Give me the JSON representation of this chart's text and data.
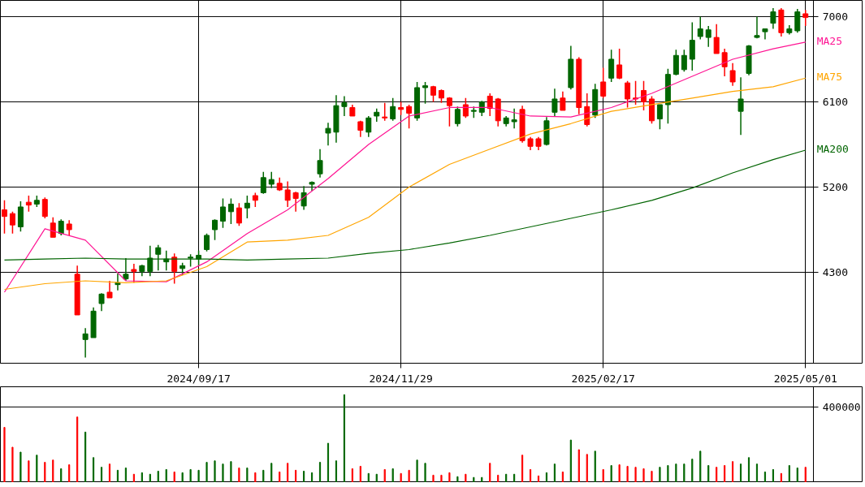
{
  "chart_data": [
    {
      "type": "candlestick",
      "categories": [
        null,
        null,
        null,
        null,
        null,
        null,
        null,
        null,
        null,
        null,
        null,
        null,
        null,
        null,
        null,
        null,
        null,
        null,
        null,
        null,
        null,
        null,
        null,
        null,
        "2024/09/17",
        null,
        null,
        null,
        null,
        null,
        null,
        null,
        null,
        null,
        null,
        null,
        null,
        null,
        null,
        null,
        null,
        null,
        null,
        null,
        null,
        null,
        null,
        null,
        null,
        "2024/11/29",
        null,
        null,
        null,
        null,
        null,
        null,
        null,
        null,
        null,
        null,
        null,
        null,
        null,
        null,
        null,
        null,
        null,
        null,
        null,
        null,
        null,
        null,
        null,
        null,
        "2025/02/17",
        null,
        null,
        null,
        null,
        null,
        null,
        null,
        null,
        null,
        null,
        null,
        null,
        null,
        null,
        null,
        null,
        null,
        null,
        null,
        null,
        null,
        null,
        null,
        null,
        "2025/05/01"
      ],
      "colors": [
        "#ff0000",
        "#ff0000",
        "#006600",
        "#ff0000",
        "#006600",
        "#ff0000",
        "#ff0000",
        "#006600",
        "#ff0000",
        "#ff0000",
        "#006600",
        "#006600",
        "#006600",
        "#ff0000",
        "#006600",
        "#006600",
        "#ff0000",
        "#006600",
        "#006600",
        "#006600",
        "#006600",
        "#ff0000",
        "#006600",
        "#006600",
        "#006600",
        "#006600",
        "#006600",
        "#006600",
        "#006600",
        "#ff0000",
        "#006600",
        "#ff0000",
        "#006600",
        "#006600",
        "#ff0000",
        "#ff0000",
        "#ff0000",
        "#006600",
        "#006600",
        "#006600",
        "#006600",
        "#006600",
        "#006600",
        "#ff0000",
        "#ff0000",
        "#006600",
        "#006600",
        "#ff0000",
        "#006600",
        "#ff0000",
        "#ff0000",
        "#006600",
        "#006600",
        "#ff0000",
        "#ff0000",
        "#ff0000",
        "#006600",
        "#ff0000",
        "#006600",
        "#006600",
        "#ff0000",
        "#ff0000",
        "#006600",
        "#006600",
        "#ff0000",
        "#ff0000",
        "#ff0000",
        "#006600",
        "#006600",
        "#ff0000",
        "#006600",
        "#ff0000",
        "#ff0000",
        "#006600",
        "#ff0000",
        "#006600",
        "#ff0000",
        "#ff0000",
        "#ff0000",
        "#ff0000",
        "#ff0000",
        "#006600",
        "#006600",
        "#006600",
        "#006600",
        "#006600",
        "#006600",
        "#006600",
        "#ff0000",
        "#ff0000",
        "#ff0000",
        "#006600",
        "#006600",
        "#006600",
        "#006600",
        "#006600",
        "#ff0000",
        "#006600",
        "#006600",
        "#ff0000"
      ],
      "ohlc": [
        [
          4960,
          5060,
          4710,
          4890
        ],
        [
          4920,
          4940,
          4710,
          4800
        ],
        [
          4780,
          5050,
          4730,
          4990
        ],
        [
          5040,
          5110,
          4940,
          5010
        ],
        [
          5020,
          5110,
          4990,
          5060
        ],
        [
          5070,
          5090,
          4870,
          4890
        ],
        [
          4820,
          4880,
          4670,
          4670
        ],
        [
          4710,
          4860,
          4690,
          4840
        ],
        [
          4810,
          4850,
          4690,
          4750
        ],
        [
          4280,
          4370,
          3850,
          3850
        ],
        [
          3590,
          3710,
          3400,
          3650
        ],
        [
          3610,
          3930,
          3610,
          3890
        ],
        [
          3970,
          4080,
          3890,
          4070
        ],
        [
          4090,
          4210,
          4030,
          4030
        ],
        [
          4170,
          4290,
          4110,
          4190
        ],
        [
          4230,
          4450,
          4210,
          4280
        ],
        [
          4330,
          4390,
          4190,
          4310
        ],
        [
          4310,
          4380,
          4260,
          4370
        ],
        [
          4310,
          4580,
          4260,
          4450
        ],
        [
          4490,
          4590,
          4320,
          4560
        ],
        [
          4410,
          4530,
          4320,
          4440
        ],
        [
          4460,
          4500,
          4180,
          4310
        ],
        [
          4340,
          4400,
          4270,
          4370
        ],
        [
          4450,
          4490,
          4360,
          4460
        ],
        [
          4440,
          4530,
          4370,
          4480
        ],
        [
          4540,
          4710,
          4520,
          4690
        ],
        [
          4750,
          4860,
          4640,
          4850
        ],
        [
          4840,
          5080,
          4770,
          4990
        ],
        [
          4940,
          5080,
          4810,
          5020
        ],
        [
          4980,
          5030,
          4790,
          4820
        ],
        [
          4980,
          5110,
          4870,
          5030
        ],
        [
          5110,
          5140,
          4990,
          5060
        ],
        [
          5140,
          5360,
          5130,
          5300
        ],
        [
          5230,
          5360,
          5190,
          5280
        ],
        [
          5240,
          5300,
          5160,
          5170
        ],
        [
          5170,
          5260,
          4990,
          5060
        ],
        [
          5140,
          5150,
          4940,
          5080
        ],
        [
          5000,
          5210,
          4960,
          5140
        ],
        [
          5230,
          5260,
          5160,
          5250
        ],
        [
          5340,
          5600,
          5300,
          5480
        ],
        [
          5770,
          5880,
          5640,
          5820
        ],
        [
          5780,
          6170,
          5670,
          6060
        ],
        [
          6050,
          6160,
          5950,
          6090
        ],
        [
          6040,
          6070,
          5950,
          5950
        ],
        [
          5890,
          5900,
          5730,
          5800
        ],
        [
          5780,
          5950,
          5730,
          5930
        ],
        [
          5950,
          6030,
          5890,
          5990
        ],
        [
          5940,
          6090,
          5900,
          5930
        ],
        [
          5920,
          6140,
          5900,
          6050
        ],
        [
          6040,
          6100,
          5960,
          6020
        ],
        [
          6050,
          6070,
          5820,
          5980
        ],
        [
          5930,
          6310,
          5900,
          6250
        ],
        [
          6250,
          6310,
          6080,
          6270
        ],
        [
          6260,
          6270,
          6100,
          6170
        ],
        [
          6220,
          6230,
          6090,
          6140
        ],
        [
          6140,
          6150,
          5840,
          6060
        ],
        [
          5870,
          6050,
          5840,
          6020
        ],
        [
          6070,
          6140,
          5930,
          5950
        ],
        [
          6000,
          6050,
          5930,
          6010
        ],
        [
          5990,
          6110,
          5950,
          6100
        ],
        [
          6160,
          6190,
          5950,
          6030
        ],
        [
          6130,
          6140,
          5840,
          5900
        ],
        [
          5870,
          5950,
          5840,
          5930
        ],
        [
          5890,
          6030,
          5820,
          5910
        ],
        [
          6020,
          6060,
          5670,
          5690
        ],
        [
          5710,
          5730,
          5590,
          5630
        ],
        [
          5710,
          5730,
          5590,
          5630
        ],
        [
          5650,
          5940,
          5640,
          5900
        ],
        [
          5990,
          6240,
          5950,
          6130
        ],
        [
          6140,
          6210,
          6010,
          6010
        ],
        [
          6250,
          6690,
          6230,
          6550
        ],
        [
          6550,
          6570,
          5970,
          6040
        ],
        [
          6050,
          6190,
          5840,
          5860
        ],
        [
          5960,
          6290,
          5930,
          6230
        ],
        [
          6310,
          6460,
          6140,
          6160
        ],
        [
          6350,
          6650,
          6310,
          6550
        ],
        [
          6490,
          6660,
          6340,
          6350
        ],
        [
          6300,
          6320,
          6040,
          6130
        ],
        [
          6140,
          6320,
          6070,
          6130
        ],
        [
          6220,
          6320,
          6010,
          6100
        ],
        [
          6130,
          6160,
          5870,
          5900
        ],
        [
          5920,
          6070,
          5810,
          6070
        ],
        [
          6070,
          6450,
          5870,
          6390
        ],
        [
          6390,
          6650,
          6380,
          6590
        ],
        [
          6440,
          6650,
          6420,
          6590
        ],
        [
          6550,
          6940,
          6430,
          6750
        ],
        [
          6790,
          7000,
          6760,
          6870
        ],
        [
          6780,
          6900,
          6680,
          6860
        ],
        [
          6780,
          6920,
          6610,
          6610
        ],
        [
          6620,
          6660,
          6370,
          6470
        ],
        [
          6430,
          6510,
          6270,
          6310
        ],
        [
          6000,
          6360,
          5750,
          6130
        ],
        [
          6400,
          6700,
          6380,
          6690
        ],
        [
          6780,
          7000,
          6770,
          6800
        ],
        [
          6840,
          6870,
          6760,
          6870
        ],
        [
          6930,
          7090,
          6870,
          7050
        ],
        [
          7070,
          7090,
          6790,
          6830
        ],
        [
          6830,
          6910,
          6810,
          6870
        ],
        [
          6850,
          7080,
          6830,
          7050
        ],
        [
          7030,
          7070,
          6900,
          6990
        ]
      ],
      "series": [
        {
          "type": "line",
          "name": "MA25",
          "color": "#ff1493",
          "values": [
            4090,
            null,
            null,
            null,
            null,
            4760,
            null,
            null,
            null,
            null,
            4640,
            null,
            null,
            null,
            null,
            4210,
            null,
            null,
            null,
            null,
            4200,
            null,
            null,
            null,
            null,
            4410,
            null,
            null,
            null,
            null,
            4710,
            null,
            null,
            null,
            null,
            4960,
            null,
            null,
            null,
            null,
            5290,
            null,
            null,
            null,
            null,
            5650,
            null,
            null,
            null,
            null,
            5950,
            null,
            null,
            null,
            null,
            6040,
            null,
            null,
            null,
            null,
            6040,
            null,
            null,
            null,
            null,
            5950,
            null,
            null,
            null,
            null,
            5940,
            null,
            null,
            null,
            null,
            6040,
            null,
            null,
            null,
            null,
            6190,
            null,
            null,
            null,
            null,
            6370,
            null,
            null,
            null,
            null,
            6550,
            null,
            null,
            null,
            null,
            6660,
            null,
            null,
            null,
            6730
          ]
        },
        {
          "type": "line",
          "name": "MA75",
          "color": "#ffa500",
          "values": [
            4120,
            null,
            null,
            null,
            null,
            4180,
            null,
            null,
            null,
            null,
            4210,
            null,
            null,
            null,
            null,
            4190,
            null,
            null,
            null,
            null,
            4210,
            null,
            null,
            null,
            null,
            4360,
            null,
            null,
            null,
            null,
            4620,
            null,
            null,
            null,
            null,
            4640,
            null,
            null,
            null,
            null,
            4690,
            null,
            null,
            null,
            null,
            4880,
            null,
            null,
            null,
            null,
            5200,
            null,
            null,
            null,
            null,
            5440,
            null,
            null,
            null,
            null,
            5600,
            null,
            null,
            null,
            null,
            5760,
            null,
            null,
            null,
            null,
            5870,
            null,
            null,
            null,
            null,
            6000,
            null,
            null,
            null,
            null,
            6070,
            null,
            null,
            null,
            null,
            6140,
            null,
            null,
            null,
            null,
            6210,
            null,
            null,
            null,
            null,
            6260,
            null,
            null,
            null,
            6350
          ]
        },
        {
          "type": "line",
          "name": "MA200",
          "color": "#006400",
          "values": [
            4430,
            null,
            null,
            null,
            null,
            4440,
            null,
            null,
            null,
            null,
            4450,
            null,
            null,
            null,
            null,
            4440,
            null,
            null,
            null,
            null,
            4440,
            null,
            null,
            null,
            null,
            4440,
            null,
            null,
            null,
            null,
            4430,
            null,
            null,
            null,
            null,
            4440,
            null,
            null,
            null,
            null,
            4450,
            null,
            null,
            null,
            null,
            4500,
            null,
            null,
            null,
            null,
            4540,
            null,
            null,
            null,
            null,
            4610,
            null,
            null,
            null,
            null,
            4690,
            null,
            null,
            null,
            null,
            4780,
            null,
            null,
            null,
            null,
            4870,
            null,
            null,
            null,
            null,
            4960,
            null,
            null,
            null,
            null,
            5060,
            null,
            null,
            null,
            null,
            5190,
            null,
            null,
            null,
            null,
            5350,
            null,
            null,
            null,
            null,
            5490,
            null,
            null,
            null,
            5590
          ]
        }
      ],
      "ylim": [
        3340,
        7171
      ],
      "yticks": [
        4300,
        5200,
        6100,
        7000
      ],
      "grid": true
    },
    {
      "type": "bar",
      "categories": [
        null,
        null,
        null,
        null,
        null,
        null,
        null,
        null,
        null,
        null,
        null,
        null,
        null,
        null,
        null,
        null,
        null,
        null,
        null,
        null,
        null,
        null,
        null,
        null,
        null,
        null,
        null,
        null,
        null,
        null,
        null,
        null,
        null,
        null,
        null,
        null,
        null,
        null,
        null,
        null,
        null,
        null,
        null,
        null,
        null,
        null,
        null,
        null,
        null,
        null,
        null,
        null,
        null,
        null,
        null,
        null,
        null,
        null,
        null,
        null,
        null,
        null,
        null,
        null,
        null,
        null,
        null,
        null,
        null,
        null,
        null,
        null,
        null,
        null,
        null,
        null,
        null,
        null,
        null,
        null,
        null,
        null,
        null,
        null,
        null,
        null,
        null,
        null,
        null,
        null,
        null,
        null,
        null,
        null,
        null,
        null,
        null,
        null,
        null,
        null
      ],
      "values": [
        292000,
        187000,
        161000,
        115000,
        145000,
        107000,
        119000,
        73000,
        94000,
        347000,
        267000,
        132000,
        81000,
        98000,
        65000,
        77000,
        44000,
        52000,
        44000,
        60000,
        69000,
        56000,
        52000,
        69000,
        65000,
        107000,
        115000,
        98000,
        111000,
        77000,
        77000,
        52000,
        65000,
        102000,
        56000,
        102000,
        65000,
        60000,
        52000,
        107000,
        208000,
        115000,
        465000,
        73000,
        86000,
        48000,
        44000,
        69000,
        73000,
        48000,
        65000,
        119000,
        102000,
        39000,
        39000,
        52000,
        31000,
        44000,
        27000,
        27000,
        102000,
        39000,
        44000,
        44000,
        145000,
        69000,
        35000,
        52000,
        98000,
        56000,
        225000,
        174000,
        149000,
        166000,
        69000,
        90000,
        94000,
        86000,
        81000,
        73000,
        60000,
        81000,
        90000,
        98000,
        98000,
        124000,
        166000,
        90000,
        81000,
        90000,
        111000,
        98000,
        132000,
        98000,
        56000,
        69000,
        48000,
        90000,
        77000,
        81000
      ],
      "colors": [
        "#ff0000",
        "#ff0000",
        "#006600",
        "#ff0000",
        "#006600",
        "#ff0000",
        "#ff0000",
        "#006600",
        "#ff0000",
        "#ff0000",
        "#006600",
        "#006600",
        "#006600",
        "#ff0000",
        "#006600",
        "#006600",
        "#ff0000",
        "#006600",
        "#006600",
        "#006600",
        "#006600",
        "#ff0000",
        "#006600",
        "#006600",
        "#006600",
        "#006600",
        "#006600",
        "#006600",
        "#006600",
        "#ff0000",
        "#006600",
        "#ff0000",
        "#006600",
        "#006600",
        "#ff0000",
        "#ff0000",
        "#ff0000",
        "#006600",
        "#006600",
        "#006600",
        "#006600",
        "#006600",
        "#006600",
        "#ff0000",
        "#ff0000",
        "#006600",
        "#006600",
        "#ff0000",
        "#006600",
        "#ff0000",
        "#ff0000",
        "#006600",
        "#006600",
        "#ff0000",
        "#ff0000",
        "#ff0000",
        "#006600",
        "#ff0000",
        "#006600",
        "#006600",
        "#ff0000",
        "#ff0000",
        "#006600",
        "#006600",
        "#ff0000",
        "#ff0000",
        "#ff0000",
        "#006600",
        "#006600",
        "#ff0000",
        "#006600",
        "#ff0000",
        "#ff0000",
        "#006600",
        "#ff0000",
        "#006600",
        "#ff0000",
        "#ff0000",
        "#ff0000",
        "#ff0000",
        "#ff0000",
        "#006600",
        "#006600",
        "#006600",
        "#006600",
        "#006600",
        "#006600",
        "#006600",
        "#ff0000",
        "#ff0000",
        "#ff0000",
        "#006600",
        "#006600",
        "#006600",
        "#006600",
        "#006600",
        "#ff0000",
        "#006600",
        "#006600",
        "#ff0000"
      ],
      "ylim": [
        0,
        507000
      ],
      "yticks": [
        {
          "value": 0,
          "label": null
        },
        400000
      ],
      "grid": true,
      "tick_labels": "y"
    }
  ]
}
